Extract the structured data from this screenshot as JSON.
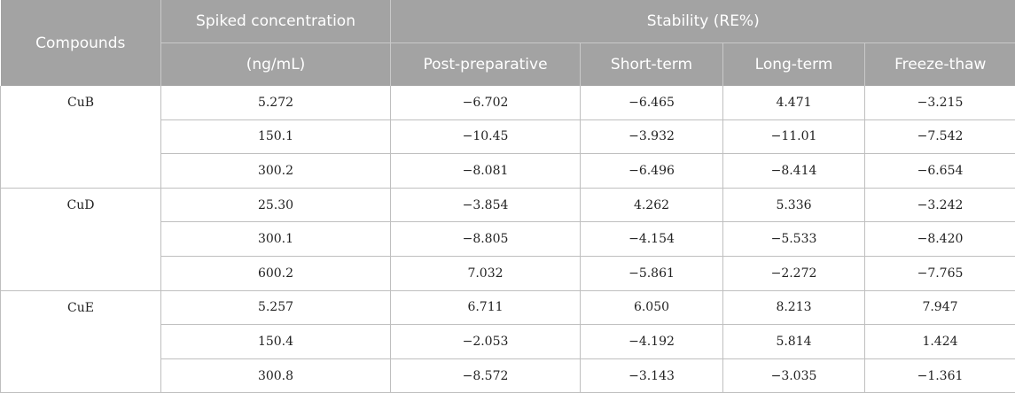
{
  "header": {
    "compounds": "Compounds",
    "spiked_line1": "Spiked concentration",
    "spiked_line2": "(ng/mL)",
    "stability": "Stability (RE%)",
    "post_preparative": "Post-preparative",
    "short_term": "Short-term",
    "long_term": "Long-term",
    "freeze_thaw": "Freeze-thaw"
  },
  "groups": [
    {
      "compound": "CuB",
      "rows": [
        {
          "conc": "5.272",
          "post": "−6.702",
          "short": "−6.465",
          "long": "4.471",
          "freeze": "−3.215"
        },
        {
          "conc": "150.1",
          "post": "−10.45",
          "short": "−3.932",
          "long": "−11.01",
          "freeze": "−7.542"
        },
        {
          "conc": "300.2",
          "post": "−8.081",
          "short": "−6.496",
          "long": "−8.414",
          "freeze": "−6.654"
        }
      ]
    },
    {
      "compound": "CuD",
      "rows": [
        {
          "conc": "25.30",
          "post": "−3.854",
          "short": "4.262",
          "long": "5.336",
          "freeze": "−3.242"
        },
        {
          "conc": "300.1",
          "post": "−8.805",
          "short": "−4.154",
          "long": "−5.533",
          "freeze": "−8.420"
        },
        {
          "conc": "600.2",
          "post": "7.032",
          "short": "−5.861",
          "long": "−2.272",
          "freeze": "−7.765"
        }
      ]
    },
    {
      "compound": "CuE",
      "rows": [
        {
          "conc": "5.257",
          "post": "6.711",
          "short": "6.050",
          "long": "8.213",
          "freeze": "7.947"
        },
        {
          "conc": "150.4",
          "post": "−2.053",
          "short": "−4.192",
          "long": "5.814",
          "freeze": "1.424"
        },
        {
          "conc": "300.8",
          "post": "−8.572",
          "short": "−3.143",
          "long": "−3.035",
          "freeze": "−1.361"
        }
      ]
    }
  ]
}
